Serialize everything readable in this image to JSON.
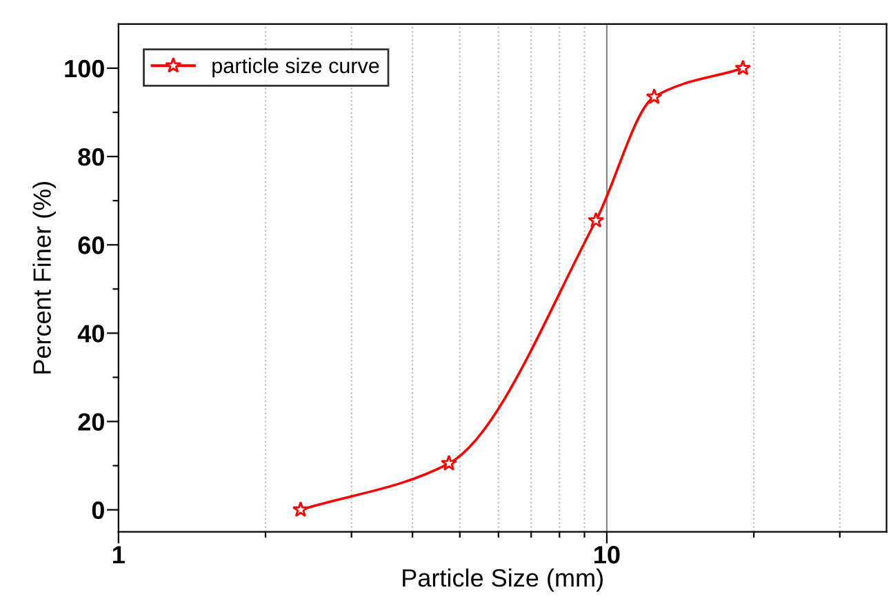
{
  "chart_data": {
    "type": "line",
    "xlabel": "Particle Size (mm)",
    "ylabel": "Percent Finer (%)",
    "log": "x",
    "xlim": [
      1,
      37.4
    ],
    "ylim": [
      -5,
      110
    ],
    "xticks": [
      1,
      {
        "value": 2,
        "label": null
      },
      {
        "value": 3,
        "label": null
      },
      {
        "value": 4,
        "label": null
      },
      {
        "value": 5,
        "label": null
      },
      {
        "value": 6,
        "label": null
      },
      {
        "value": 7,
        "label": null
      },
      {
        "value": 8,
        "label": null
      },
      {
        "value": 9,
        "label": null
      },
      10,
      {
        "value": 20,
        "label": null
      },
      {
        "value": 30,
        "label": null
      }
    ],
    "yticks": [
      0,
      {
        "value": 10,
        "label": null
      },
      20,
      {
        "value": 30,
        "label": null
      },
      40,
      {
        "value": 50,
        "label": null
      },
      60,
      {
        "value": 70,
        "label": null
      },
      80,
      {
        "value": 90,
        "label": null
      },
      100
    ],
    "grid": "x",
    "ref_lines": [
      {
        "axis": "x",
        "value": 10,
        "color": "#888888",
        "line_style": "solid"
      }
    ],
    "legend": "top left",
    "marker": "star",
    "line_style": "solid",
    "series": [
      {
        "name": "particle size curve",
        "color": "#ff0000",
        "x": [
          2.36,
          4.75,
          9.5,
          12.5,
          19
        ],
        "values": [
          0,
          10.5,
          65.5,
          93.5,
          100
        ]
      }
    ]
  }
}
